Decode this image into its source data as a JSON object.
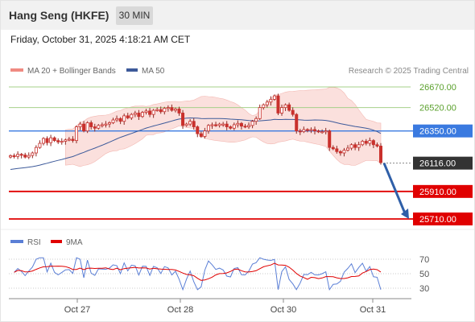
{
  "header": {
    "instrument": "Hang Seng (HKFE)",
    "timeframe": "30 MIN"
  },
  "timestamp": "Friday, October 31, 2025 4:18:21 AM CET",
  "legend": {
    "bb": "MA 20 + Bollinger Bands",
    "ma50": "MA 50",
    "credit": "Research © 2025 Trading Central"
  },
  "rsi_legend": {
    "rsi": "RSI",
    "ma": "9MA"
  },
  "colors": {
    "up": "#d9534f",
    "down": "#c9302c",
    "green_level": "#a6d08a",
    "blue_level": "#3a7ae0",
    "red_level": "#e00000",
    "bb_fill": "#f9d6d2",
    "ma50": "#3d5a9a",
    "arrow": "#2f5fa8",
    "rsi": "#5b7fd6",
    "rsi_ma": "#e00000"
  },
  "chart_data": [
    {
      "type": "candlestick",
      "title": "",
      "x_ticks": [
        "Oct 27",
        "Oct 28",
        "Oct 30",
        "Oct 31"
      ],
      "levels": [
        {
          "value": 26670,
          "label": "26670.00",
          "style": "green"
        },
        {
          "value": 26520,
          "label": "26520.00",
          "style": "green"
        },
        {
          "value": 26350,
          "label": "26350.00",
          "style": "blue"
        },
        {
          "value": 26116,
          "label": "26116.00",
          "style": "last"
        },
        {
          "value": 25910,
          "label": "25910.00",
          "style": "red"
        },
        {
          "value": 25710,
          "label": "25710.00",
          "style": "red"
        }
      ],
      "close": [
        26170,
        26165,
        26180,
        26175,
        26160,
        26172,
        26190,
        26230,
        26260,
        26295,
        26265,
        26300,
        26280,
        26270,
        26275,
        26285,
        26290,
        26280,
        26380,
        26400,
        26350,
        26410,
        26380,
        26370,
        26390,
        26395,
        26400,
        26410,
        26430,
        26440,
        26420,
        26460,
        26445,
        26470,
        26480,
        26455,
        26485,
        26495,
        26470,
        26500,
        26505,
        26490,
        26515,
        26520,
        26500,
        26510,
        26480,
        26390,
        26400,
        26420,
        26380,
        26330,
        26310,
        26350,
        26390,
        26395,
        26390,
        26400,
        26400,
        26380,
        26370,
        26395,
        26405,
        26385,
        26380,
        26390,
        26420,
        26440,
        26520,
        26540,
        26560,
        26580,
        26605,
        26480,
        26520,
        26540,
        26500,
        26470,
        26350,
        26345,
        26360,
        26355,
        26360,
        26350,
        26345,
        26345,
        26350,
        26230,
        26220,
        26200,
        26190,
        26210,
        26225,
        26250,
        26230,
        26250,
        26275,
        26260,
        26280,
        26250,
        26240,
        26120
      ],
      "prediction": {
        "from": 26116,
        "to": 25710
      },
      "ma20_band": {
        "upper_start": 26350,
        "upper_peak": 26700,
        "lower_min": 26160
      }
    },
    {
      "type": "line",
      "title": "",
      "series": [
        {
          "name": "RSI"
        },
        {
          "name": "9MA"
        }
      ],
      "y_ticks": [
        30,
        50,
        70
      ]
    }
  ]
}
